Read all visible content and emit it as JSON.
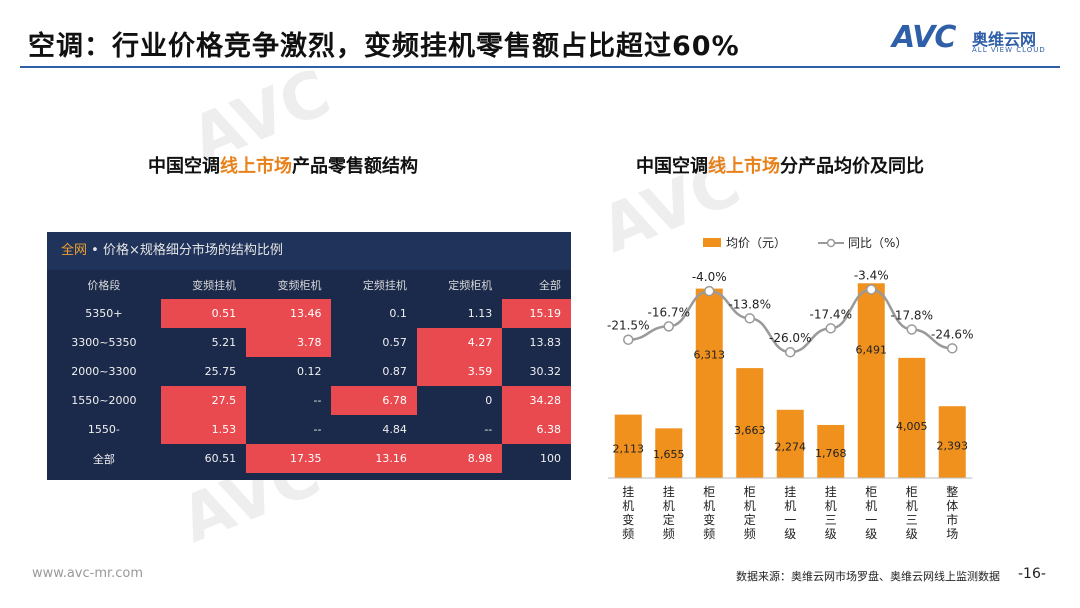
{
  "header": {
    "title": "空调：行业价格竞争激烈，变频挂机零售额占比超过60%",
    "logo_text": "AVC",
    "logo_cn": "奥维云网",
    "logo_en": "ALL VIEW CLOUD"
  },
  "left_panel": {
    "subtitle_pre": "中国空调",
    "subtitle_hl": "线上市场",
    "subtitle_post": "产品零售额结构",
    "table_title_hl": "全网",
    "table_title_rest": " • 价格×规格细分市场的结构比例",
    "columns": [
      "价格段",
      "变频挂机",
      "变频柜机",
      "定频挂机",
      "定频柜机",
      "全部"
    ],
    "rows": [
      {
        "cells": [
          "5350+",
          "0.51",
          "13.46",
          "0.1",
          "1.13",
          "15.19"
        ]
      },
      {
        "cells": [
          "3300~5350",
          "5.21",
          "3.78",
          "0.57",
          "4.27",
          "13.83"
        ]
      },
      {
        "cells": [
          "2000~3300",
          "25.75",
          "0.12",
          "0.87",
          "3.59",
          "30.32"
        ]
      },
      {
        "cells": [
          "1550~2000",
          "27.5",
          "--",
          "6.78",
          "0",
          "34.28"
        ]
      },
      {
        "cells": [
          "1550-",
          "1.53",
          "--",
          "4.84",
          "--",
          "6.38"
        ]
      },
      {
        "cells": [
          "全部",
          "60.51",
          "17.35",
          "13.16",
          "8.98",
          "100"
        ]
      }
    ]
  },
  "right_panel": {
    "subtitle_pre": "中国空调",
    "subtitle_hl": "线上市场",
    "subtitle_post": "分产品均价及同比"
  },
  "chart_data": {
    "type": "bar",
    "categories": [
      "挂机变频",
      "挂机定频",
      "柜机变频",
      "柜机定频",
      "挂机一级",
      "挂机三级",
      "柜机一级",
      "柜机三级",
      "整体市场"
    ],
    "series": [
      {
        "name": "均价（元）",
        "type": "bar",
        "values": [
          2113,
          1655,
          6313,
          3663,
          2274,
          1768,
          6491,
          4005,
          2393
        ],
        "labels": [
          "2,113",
          "1,655",
          "6,313",
          "3,663",
          "2,274",
          "1,768",
          "6,491",
          "4,005",
          "2,393"
        ]
      },
      {
        "name": "同比（%）",
        "type": "line",
        "values": [
          -21.5,
          -16.7,
          -4.0,
          -13.8,
          -26.0,
          -17.4,
          -3.4,
          -17.8,
          -24.6
        ],
        "labels": [
          "-21.5%",
          "-16.7%",
          "-4.0%",
          "-13.8%",
          "-26.0%",
          "-17.4%",
          "-3.4%",
          "-17.8%",
          "-24.6%"
        ]
      }
    ],
    "legend_position": "top",
    "bar_color": "#f0911e",
    "line_color": "#9a9a9a",
    "bar_ylim": [
      0,
      7000
    ],
    "line_ylim": [
      -36,
      0
    ]
  },
  "footer": {
    "website": "www.avc-mr.com",
    "source": "数据来源：奥维云网市场罗盘、奥维云网线上监测数据",
    "page": "-16-"
  },
  "colors": {
    "accent": "#2f5fa8",
    "highlight": "#e8811a",
    "hot_cell": "#e84a4f",
    "table_bg": "#1b2a4a"
  }
}
